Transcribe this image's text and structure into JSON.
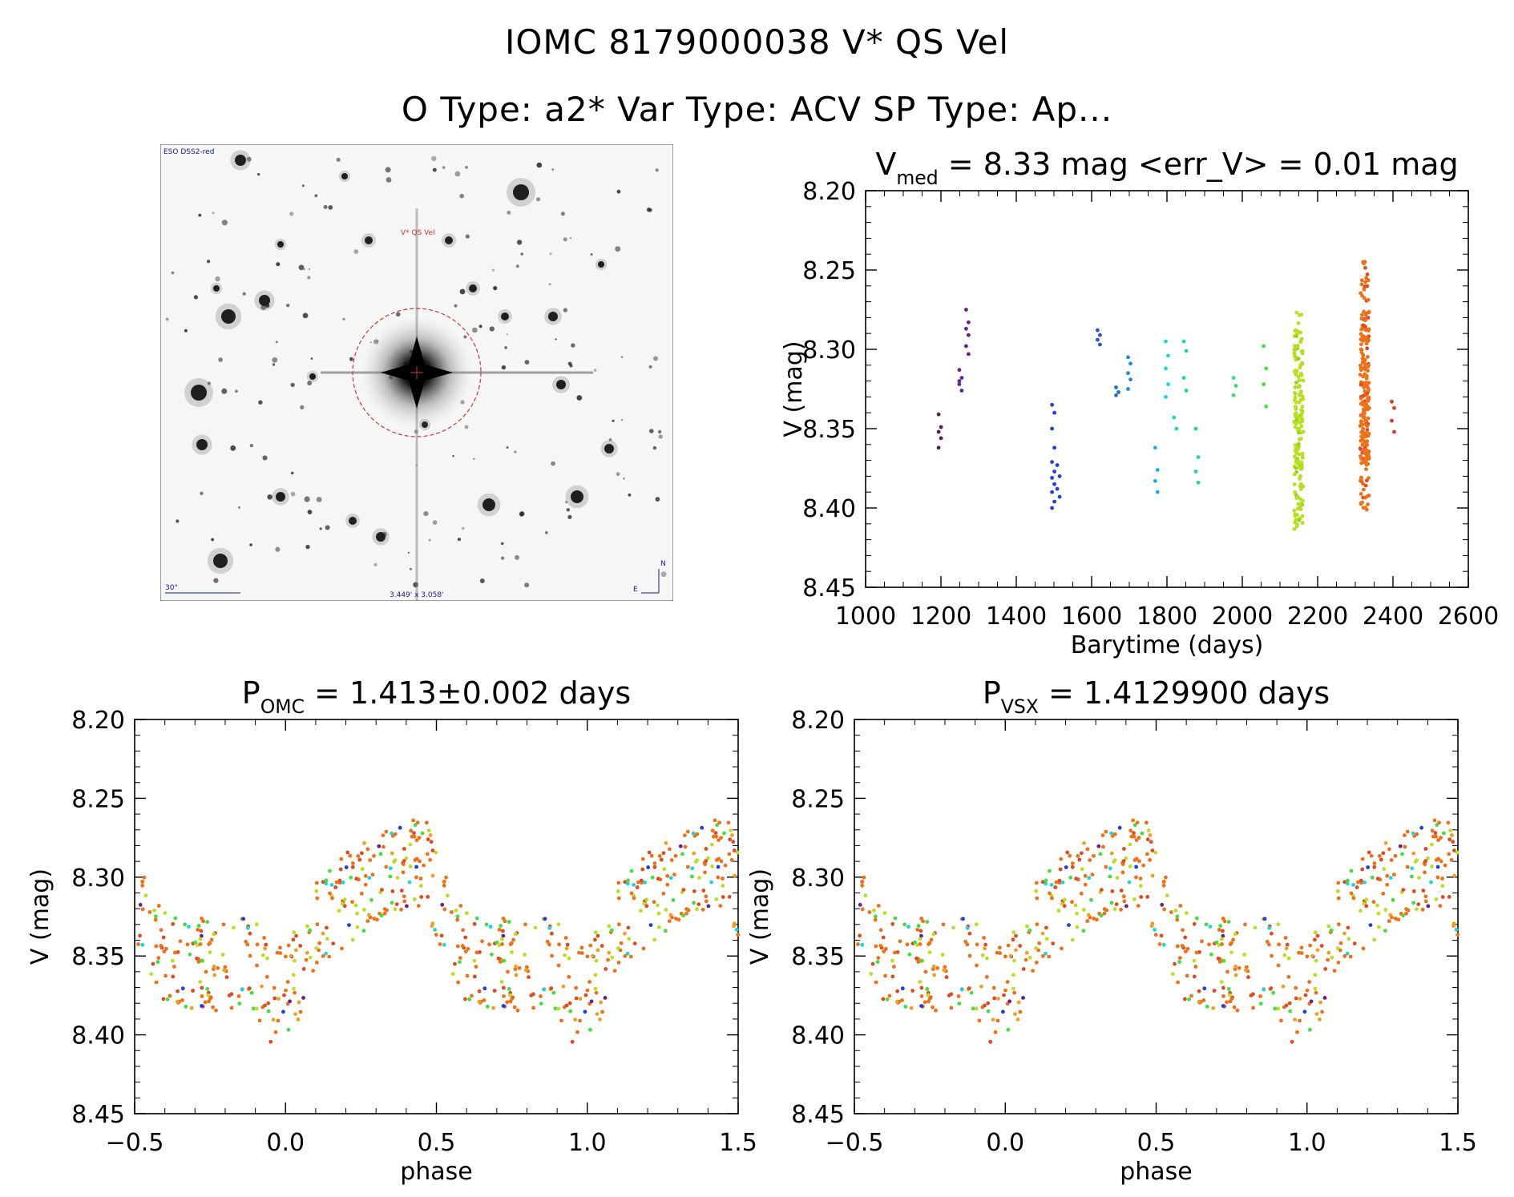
{
  "title": {
    "line1": "IOMC 8179000038   V* QS Vel",
    "line2": "O Type: a2*  Var Type: ACV  SP Type: Ap..."
  },
  "finder": {
    "survey_label": "ESO DSS2-red",
    "target_label": "V* QS Vel",
    "scale_label": "30\"",
    "fov_label": "3.449' x 3.058'",
    "north_label": "N",
    "east_label": "E",
    "colors": {
      "target": "#c0393b",
      "label": "#1a1a8a"
    }
  },
  "chart_data": [
    {
      "id": "lightcurve-time",
      "type": "scatter",
      "title_main": "V",
      "title_sub": "med",
      "title_rest": " = 8.33 mag <err_V> = 0.01 mag",
      "xlabel": "Barytime (days)",
      "ylabel": "V (mag)",
      "xlim": [
        1000,
        2600
      ],
      "ylim": [
        8.45,
        8.2
      ],
      "xticks": [
        "1000",
        "1200",
        "1400",
        "1600",
        "1800",
        "2000",
        "2200",
        "2400",
        "2600"
      ],
      "yticks": [
        "8.20",
        "8.25",
        "8.30",
        "8.35",
        "8.40",
        "8.45"
      ],
      "groups": [
        {
          "t": 1197,
          "color": "#5b1a4f",
          "values": [
            8.341,
            8.349,
            8.352,
            8.356,
            8.362
          ]
        },
        {
          "t": 1252,
          "color": "#6a1f8e",
          "values": [
            8.313,
            8.318,
            8.322,
            8.326,
            8.32
          ]
        },
        {
          "t": 1270,
          "color": "#6a1f8e",
          "values": [
            8.275,
            8.283,
            8.287,
            8.291,
            8.298,
            8.303
          ]
        },
        {
          "t": 1498,
          "color": "#1f3ee0",
          "values": [
            8.335,
            8.34,
            8.35,
            8.362,
            8.371,
            8.377,
            8.381,
            8.385,
            8.39,
            8.396,
            8.4
          ]
        },
        {
          "t": 1512,
          "color": "#1f3ee0",
          "values": [
            8.373,
            8.38,
            8.388,
            8.393
          ]
        },
        {
          "t": 1619,
          "color": "#2a52d4",
          "values": [
            8.288,
            8.291,
            8.294,
            8.297
          ]
        },
        {
          "t": 1668,
          "color": "#1b6fd8",
          "values": [
            8.324,
            8.327,
            8.329
          ]
        },
        {
          "t": 1700,
          "color": "#1b8ae0",
          "values": [
            8.305,
            8.309,
            8.315,
            8.319,
            8.325
          ]
        },
        {
          "t": 1772,
          "color": "#12b4e8",
          "values": [
            8.362,
            8.376,
            8.383,
            8.39
          ]
        },
        {
          "t": 1800,
          "color": "#18d8d8",
          "values": [
            8.295,
            8.304,
            8.312,
            8.322,
            8.33
          ]
        },
        {
          "t": 1822,
          "color": "#18d8c0",
          "values": [
            8.343,
            8.35
          ]
        },
        {
          "t": 1848,
          "color": "#18d8a8",
          "values": [
            8.295,
            8.301,
            8.318,
            8.326
          ]
        },
        {
          "t": 1880,
          "color": "#20d890",
          "values": [
            8.35,
            8.368,
            8.377,
            8.384
          ]
        },
        {
          "t": 1980,
          "color": "#30e070",
          "values": [
            8.318,
            8.323,
            8.329
          ]
        },
        {
          "t": 2060,
          "color": "#40e040",
          "values": [
            8.298,
            8.312,
            8.322,
            8.336
          ]
        },
        {
          "t": 2400,
          "color": "#d83a28",
          "values": [
            8.333,
            8.337,
            8.345,
            8.352
          ]
        }
      ],
      "dense_groups": [
        {
          "t": 2150,
          "spread": 12,
          "color": "#b8e020",
          "min": 8.276,
          "max": 8.414,
          "count": 170
        },
        {
          "t": 2325,
          "spread": 12,
          "color": "#f07018",
          "min": 8.244,
          "max": 8.402,
          "count": 230
        }
      ]
    },
    {
      "id": "phase-omc",
      "type": "scatter",
      "title_main": "P",
      "title_sub": "OMC",
      "title_rest": " = 1.413±0.002 days",
      "xlabel": "phase",
      "ylabel": "V (mag)",
      "xlim": [
        -0.5,
        1.5
      ],
      "ylim": [
        8.45,
        8.2
      ],
      "xticks": [
        "−0.5",
        "0.0",
        "0.5",
        "1.0",
        "1.5"
      ],
      "yticks": [
        "8.20",
        "8.25",
        "8.30",
        "8.35",
        "8.40",
        "8.45"
      ],
      "note": "Phase-folded light curve; points colored by observation epoch; shown twice over two cycles"
    },
    {
      "id": "phase-vsx",
      "type": "scatter",
      "title_main": "P",
      "title_sub": "VSX",
      "title_rest": " = 1.4129900 days",
      "xlabel": "phase",
      "ylabel": "V (mag)",
      "xlim": [
        -0.5,
        1.5
      ],
      "ylim": [
        8.45,
        8.2
      ],
      "xticks": [
        "−0.5",
        "0.0",
        "0.5",
        "1.0",
        "1.5"
      ],
      "yticks": [
        "8.20",
        "8.25",
        "8.30",
        "8.35",
        "8.40",
        "8.45"
      ],
      "note": "Phase-folded light curve; points colored by observation epoch; shown twice over two cycles"
    }
  ]
}
